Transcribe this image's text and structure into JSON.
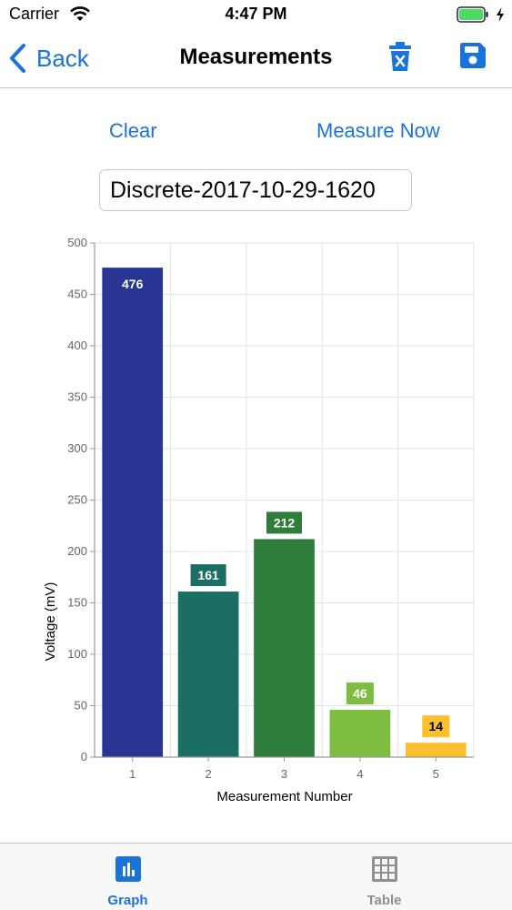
{
  "status_bar": {
    "carrier": "Carrier",
    "time": "4:47 PM",
    "battery_color": "#4cd964"
  },
  "nav": {
    "back_label": "Back",
    "title": "Measurements",
    "left_icon": "chevron-left-icon",
    "right_icons": [
      "trash-icon",
      "save-icon"
    ],
    "tint_color": "#1a73d9"
  },
  "actions": {
    "clear_label": "Clear",
    "measure_label": "Measure Now"
  },
  "name_field": {
    "value": "Discrete-2017-10-29-1620"
  },
  "chart_data": {
    "type": "bar",
    "categories": [
      "1",
      "2",
      "3",
      "4",
      "5"
    ],
    "values": [
      476,
      161,
      212,
      46,
      14
    ],
    "colors": [
      "#283593",
      "#1b6e63",
      "#2e7d3b",
      "#7cbd42",
      "#fbc02d"
    ],
    "label_text_colors": [
      "#ffffff",
      "#ffffff",
      "#ffffff",
      "#ffffff",
      "#000000"
    ],
    "data_labels": [
      "476",
      "161",
      "212",
      "46",
      "14"
    ],
    "xlabel": "Measurement Number",
    "ylabel": "Voltage (mV)",
    "ylim": [
      0,
      500
    ],
    "yticks": [
      0,
      50,
      100,
      150,
      200,
      250,
      300,
      350,
      400,
      450,
      500
    ],
    "grid": true
  },
  "tabs": [
    {
      "label": "Graph",
      "icon": "bar-chart-icon",
      "selected": true
    },
    {
      "label": "Table",
      "icon": "grid-icon",
      "selected": false
    }
  ]
}
